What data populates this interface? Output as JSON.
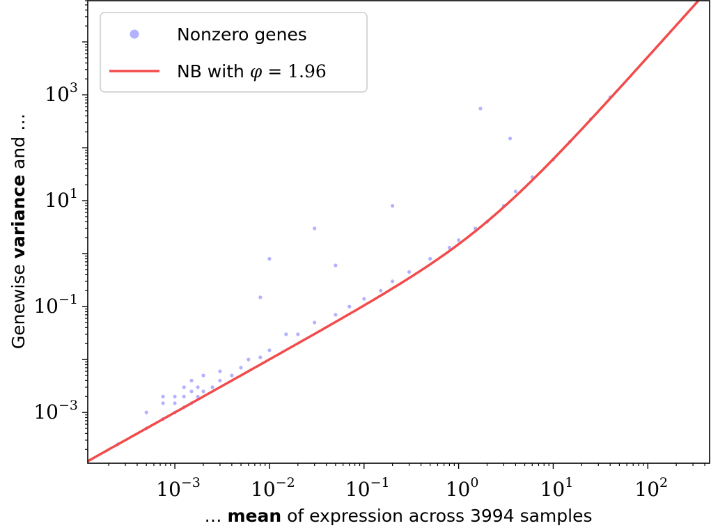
{
  "chart_data": {
    "type": "scatter",
    "xlabel": {
      "pre": "… ",
      "bold": "mean",
      "post": " of expression across 3994 samples"
    },
    "ylabel": {
      "pre": "Genewise ",
      "bold": "variance",
      "post": " and …"
    },
    "xscale": "log",
    "yscale": "log",
    "xlim": [
      0.00012,
      450
    ],
    "ylim": [
      0.00011,
      60000
    ],
    "x_tick_values": [
      0.001,
      0.01,
      0.1,
      1,
      10,
      100
    ],
    "x_tick_labels": [
      {
        "base": "10",
        "exp": "−3"
      },
      {
        "base": "10",
        "exp": "−2"
      },
      {
        "base": "10",
        "exp": "−1"
      },
      {
        "base": "10",
        "exp": "0"
      },
      {
        "base": "10",
        "exp": "1"
      },
      {
        "base": "10",
        "exp": "2"
      }
    ],
    "y_tick_values": [
      0.001,
      0.1,
      10,
      1000
    ],
    "y_tick_labels": [
      {
        "base": "10",
        "exp": "−3"
      },
      {
        "base": "10",
        "exp": "−1"
      },
      {
        "base": "10",
        "exp": "1"
      },
      {
        "base": "10",
        "exp": "3"
      }
    ],
    "grid": false,
    "legend_position": "top-left",
    "series": [
      {
        "name": "Nonzero genes",
        "kind": "scatter",
        "color": "#0000ff",
        "alpha": 0.3,
        "points": [
          [
            0.00025,
            0.00025
          ],
          [
            0.0005,
            0.0005
          ],
          [
            0.0005,
            0.001
          ],
          [
            0.00075,
            0.00075
          ],
          [
            0.00075,
            0.0015
          ],
          [
            0.00075,
            0.002
          ],
          [
            0.001,
            0.001
          ],
          [
            0.001,
            0.0015
          ],
          [
            0.001,
            0.002
          ],
          [
            0.00125,
            0.00125
          ],
          [
            0.00125,
            0.002
          ],
          [
            0.00125,
            0.003
          ],
          [
            0.0015,
            0.0015
          ],
          [
            0.0015,
            0.0025
          ],
          [
            0.0015,
            0.004
          ],
          [
            0.00175,
            0.002
          ],
          [
            0.00175,
            0.003
          ],
          [
            0.002,
            0.0025
          ],
          [
            0.002,
            0.005
          ],
          [
            0.0025,
            0.003
          ],
          [
            0.003,
            0.004
          ],
          [
            0.003,
            0.006
          ],
          [
            0.004,
            0.005
          ],
          [
            0.005,
            0.007
          ],
          [
            0.006,
            0.01
          ],
          [
            0.008,
            0.011
          ],
          [
            0.01,
            0.015
          ],
          [
            0.015,
            0.03
          ],
          [
            0.02,
            0.03
          ],
          [
            0.03,
            0.05
          ],
          [
            0.05,
            0.07
          ],
          [
            0.07,
            0.1
          ],
          [
            0.1,
            0.14
          ],
          [
            0.15,
            0.2
          ],
          [
            0.2,
            0.3
          ],
          [
            0.3,
            0.45
          ],
          [
            0.5,
            0.8
          ],
          [
            0.8,
            1.3
          ],
          [
            1,
            1.8
          ],
          [
            1.5,
            3
          ],
          [
            2,
            4
          ],
          [
            3,
            8
          ],
          [
            4,
            15
          ],
          [
            6,
            28
          ],
          [
            10,
            60
          ],
          [
            15,
            130
          ],
          [
            25,
            350
          ],
          [
            40,
            900
          ],
          [
            0.03,
            3
          ],
          [
            0.008,
            0.15
          ],
          [
            0.05,
            0.6
          ],
          [
            1.7,
            550
          ],
          [
            3.5,
            150
          ],
          [
            0.2,
            8
          ],
          [
            0.01,
            0.8
          ]
        ]
      },
      {
        "name": "NB with φ = 1.96",
        "kind": "line",
        "color": "#f24b4b",
        "dispersion": 1.96,
        "note_equation": "variance = mean + mean^2 / phi"
      }
    ]
  }
}
